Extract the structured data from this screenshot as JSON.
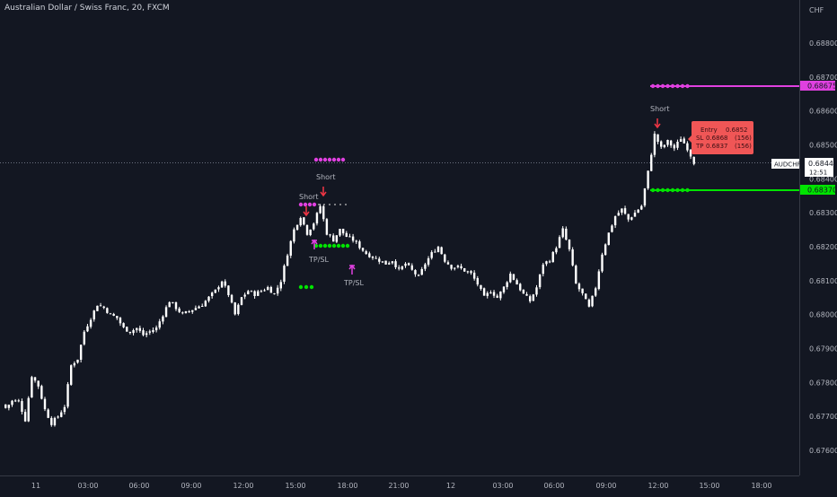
{
  "header": {
    "title": "Australian Dollar / Swiss Franc, 20, FXCM",
    "currency": "CHF"
  },
  "price_axis": {
    "ticks": [
      "0.68800",
      "0.68700",
      "0.68600",
      "0.68500",
      "0.68400",
      "0.68300",
      "0.68200",
      "0.68100",
      "0.68000",
      "0.67900",
      "0.67800",
      "0.67700",
      "0.67600"
    ]
  },
  "time_axis": {
    "ticks": [
      "11",
      "03:00",
      "06:00",
      "09:00",
      "12:00",
      "15:00",
      "18:00",
      "21:00",
      "12",
      "03:00",
      "06:00",
      "09:00",
      "12:00",
      "15:00",
      "18:00"
    ]
  },
  "current_price": {
    "symbol": "AUDCHF",
    "value": "0.68449",
    "countdown": "12:51"
  },
  "levels": {
    "tp_label": "0.68675",
    "sl_label": "0.68370"
  },
  "signals": {
    "short_1": "Short",
    "short_2": "Short",
    "short_3": "Short",
    "tpsl_1": "TP/SL",
    "tpsl_2": "TP/SL"
  },
  "trade_box": {
    "entry_label": "Entry",
    "entry_value": "0.6852",
    "sl_label": "SL",
    "sl_value": "0.6868",
    "sl_pips": "(156)",
    "tp_label": "TP",
    "tp_value": "0.6837",
    "tp_pips": "(156)"
  },
  "colors": {
    "background": "#131722",
    "candle": "#ffffff",
    "tp_line": "#e040e0",
    "sl_line": "#00e400",
    "signal_arrow": "#f23645",
    "tooltip": "#f05656"
  },
  "chart_data": {
    "type": "candlestick",
    "title": "Australian Dollar / Swiss Franc, 20, FXCM",
    "ylabel": "CHF",
    "ylim": [
      0.6754,
      0.6891
    ],
    "x_label_ticks": [
      "11",
      "03:00",
      "06:00",
      "09:00",
      "12:00",
      "15:00",
      "18:00",
      "21:00",
      "12",
      "03:00",
      "06:00",
      "09:00",
      "12:00",
      "15:00",
      "18:00"
    ],
    "close_path": [
      [
        0,
        0.67725
      ],
      [
        2,
        0.67745
      ],
      [
        4,
        0.67745
      ],
      [
        6,
        0.6769
      ],
      [
        8,
        0.6782
      ],
      [
        10,
        0.6779
      ],
      [
        12,
        0.6772
      ],
      [
        14,
        0.6768
      ],
      [
        16,
        0.677
      ],
      [
        18,
        0.6773
      ],
      [
        20,
        0.6785
      ],
      [
        22,
        0.6787
      ],
      [
        24,
        0.6795
      ],
      [
        26,
        0.6799
      ],
      [
        28,
        0.6803
      ],
      [
        30,
        0.6802
      ],
      [
        32,
        0.68
      ],
      [
        34,
        0.6799
      ],
      [
        36,
        0.6796
      ],
      [
        38,
        0.6795
      ],
      [
        40,
        0.6796
      ],
      [
        42,
        0.6794
      ],
      [
        44,
        0.6795
      ],
      [
        46,
        0.6796
      ],
      [
        48,
        0.68
      ],
      [
        50,
        0.6804
      ],
      [
        52,
        0.6802
      ],
      [
        54,
        0.68
      ],
      [
        56,
        0.6801
      ],
      [
        58,
        0.6802
      ],
      [
        60,
        0.6803
      ],
      [
        62,
        0.6805
      ],
      [
        64,
        0.6807
      ],
      [
        66,
        0.681
      ],
      [
        68,
        0.6806
      ],
      [
        70,
        0.68
      ],
      [
        72,
        0.6805
      ],
      [
        74,
        0.6807
      ],
      [
        76,
        0.6806
      ],
      [
        78,
        0.6807
      ],
      [
        80,
        0.6808
      ],
      [
        82,
        0.6806
      ],
      [
        84,
        0.681
      ],
      [
        86,
        0.6818
      ],
      [
        88,
        0.6825
      ],
      [
        90,
        0.6829
      ],
      [
        92,
        0.6824
      ],
      [
        94,
        0.6827
      ],
      [
        96,
        0.6832
      ],
      [
        98,
        0.6824
      ],
      [
        100,
        0.6822
      ],
      [
        102,
        0.6825
      ],
      [
        104,
        0.6823
      ],
      [
        106,
        0.6822
      ],
      [
        108,
        0.682
      ],
      [
        110,
        0.6818
      ],
      [
        112,
        0.6817
      ],
      [
        114,
        0.6816
      ],
      [
        116,
        0.6815
      ],
      [
        118,
        0.6816
      ],
      [
        120,
        0.6813
      ],
      [
        122,
        0.6815
      ],
      [
        124,
        0.6813
      ],
      [
        126,
        0.6811
      ],
      [
        128,
        0.6815
      ],
      [
        130,
        0.6818
      ],
      [
        132,
        0.682
      ],
      [
        134,
        0.6816
      ],
      [
        136,
        0.6814
      ],
      [
        138,
        0.6814
      ],
      [
        140,
        0.6813
      ],
      [
        142,
        0.6812
      ],
      [
        144,
        0.6809
      ],
      [
        146,
        0.6805
      ],
      [
        148,
        0.6807
      ],
      [
        150,
        0.6805
      ],
      [
        152,
        0.6808
      ],
      [
        154,
        0.6812
      ],
      [
        156,
        0.6809
      ],
      [
        158,
        0.6806
      ],
      [
        160,
        0.6804
      ],
      [
        162,
        0.6808
      ],
      [
        164,
        0.6815
      ],
      [
        166,
        0.6816
      ],
      [
        168,
        0.682
      ],
      [
        170,
        0.6825
      ],
      [
        172,
        0.6819
      ],
      [
        174,
        0.6809
      ],
      [
        176,
        0.6806
      ],
      [
        178,
        0.6802
      ],
      [
        180,
        0.6808
      ],
      [
        182,
        0.6818
      ],
      [
        184,
        0.6824
      ],
      [
        186,
        0.6829
      ],
      [
        188,
        0.6831
      ],
      [
        190,
        0.6828
      ],
      [
        192,
        0.683
      ],
      [
        194,
        0.6832
      ],
      [
        196,
        0.6842
      ],
      [
        198,
        0.6853
      ],
      [
        200,
        0.6849
      ],
      [
        202,
        0.6851
      ],
      [
        204,
        0.6849
      ],
      [
        206,
        0.6852
      ],
      [
        208,
        0.6849
      ],
      [
        210,
        0.68449
      ]
    ],
    "series": [
      {
        "name": "TP/SL level",
        "value": 0.68675,
        "label": "0.68675"
      },
      {
        "name": "TP/SL level",
        "value": 0.6837,
        "label": "0.68370"
      }
    ],
    "current_price": 0.68449,
    "grid": false
  }
}
